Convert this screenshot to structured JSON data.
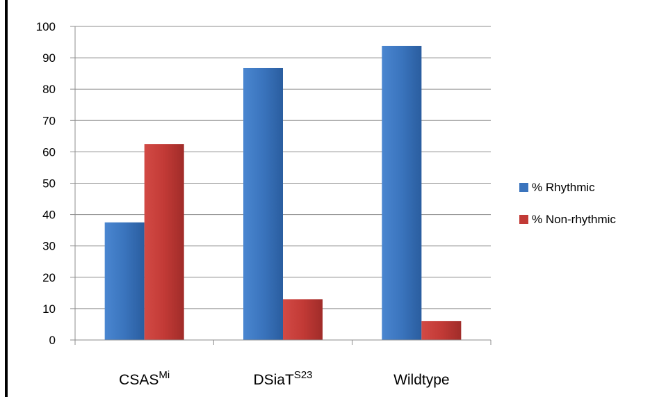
{
  "chart_data": {
    "type": "bar",
    "categories": [
      {
        "label": "CSAS",
        "sup": "Mi"
      },
      {
        "label": "DSiaT",
        "sup": "S23"
      },
      {
        "label": "Wildtype",
        "sup": ""
      }
    ],
    "series": [
      {
        "name": "% Rhythmic",
        "color": "#3a74bd",
        "values": [
          37.5,
          86.7,
          93.8
        ]
      },
      {
        "name": "% Non-rhythmic",
        "color": "#c23a36",
        "values": [
          62.5,
          13.0,
          6.0
        ]
      }
    ],
    "ylim": [
      0,
      100
    ],
    "yticks": [
      "0",
      "10",
      "20",
      "30",
      "40",
      "50",
      "60",
      "70",
      "80",
      "90",
      "100"
    ],
    "grid": true,
    "legend": "right"
  }
}
